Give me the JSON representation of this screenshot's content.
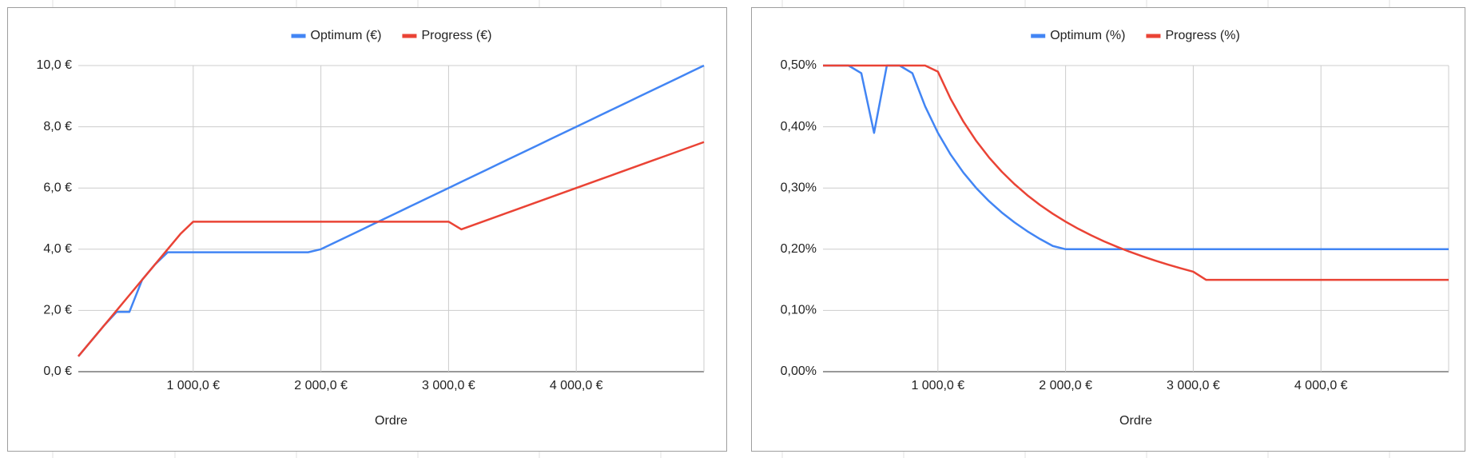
{
  "chart_data": [
    {
      "type": "line",
      "x_label": "Ordre",
      "legend": "top",
      "grid": true,
      "x": [
        100,
        200,
        300,
        400,
        500,
        600,
        700,
        800,
        900,
        1000,
        1100,
        1200,
        1300,
        1400,
        1500,
        1600,
        1700,
        1800,
        1900,
        2000,
        2100,
        2200,
        2300,
        2400,
        2500,
        2600,
        2700,
        2800,
        2900,
        3000,
        3100,
        3200,
        3300,
        3400,
        3500,
        3600,
        3700,
        3800,
        3900,
        4000,
        4100,
        4200,
        4300,
        4400,
        4500,
        4600,
        4700,
        4800,
        4900,
        5000
      ],
      "xlim": [
        100,
        5000
      ],
      "xticks": [
        {
          "value": 1000,
          "label": "1 000,0 €"
        },
        {
          "value": 2000,
          "label": "2 000,0 €"
        },
        {
          "value": 3000,
          "label": "3 000,0 €"
        },
        {
          "value": 4000,
          "label": "4 000,0 €"
        }
      ],
      "ylim": [
        0,
        10
      ],
      "yticks": [
        {
          "value": 0,
          "label": "0,0 €"
        },
        {
          "value": 2,
          "label": "2,0 €"
        },
        {
          "value": 4,
          "label": "4,0 €"
        },
        {
          "value": 6,
          "label": "6,0 €"
        },
        {
          "value": 8,
          "label": "8,0 €"
        },
        {
          "value": 10,
          "label": "10,0 €"
        }
      ],
      "series": [
        {
          "name": "Optimum (€)",
          "color": "#4285f4",
          "values": [
            0.5,
            1.0,
            1.5,
            1.95,
            1.95,
            3.0,
            3.5,
            3.9,
            3.9,
            3.9,
            3.9,
            3.9,
            3.9,
            3.9,
            3.9,
            3.9,
            3.9,
            3.9,
            3.9,
            4.0,
            4.2,
            4.4,
            4.6,
            4.8,
            5.0,
            5.2,
            5.4,
            5.6,
            5.8,
            6.0,
            6.2,
            6.4,
            6.6,
            6.8,
            7.0,
            7.2,
            7.4,
            7.6,
            7.8,
            8.0,
            8.2,
            8.4,
            8.6,
            8.8,
            9.0,
            9.2,
            9.4,
            9.6,
            9.8,
            10.0
          ]
        },
        {
          "name": "Progress (€)",
          "color": "#ea4335",
          "values": [
            0.5,
            1.0,
            1.5,
            2.0,
            2.5,
            3.0,
            3.5,
            4.0,
            4.5,
            4.9,
            4.9,
            4.9,
            4.9,
            4.9,
            4.9,
            4.9,
            4.9,
            4.9,
            4.9,
            4.9,
            4.9,
            4.9,
            4.9,
            4.9,
            4.9,
            4.9,
            4.9,
            4.9,
            4.9,
            4.9,
            4.65,
            4.8,
            4.95,
            5.1,
            5.25,
            5.4,
            5.55,
            5.7,
            5.85,
            6.0,
            6.15,
            6.3,
            6.45,
            6.6,
            6.75,
            6.9,
            7.05,
            7.2,
            7.35,
            7.5
          ]
        }
      ]
    },
    {
      "type": "line",
      "x_label": "Ordre",
      "legend": "top",
      "grid": true,
      "x": [
        100,
        200,
        300,
        400,
        500,
        600,
        700,
        800,
        900,
        1000,
        1100,
        1200,
        1300,
        1400,
        1500,
        1600,
        1700,
        1800,
        1900,
        2000,
        2100,
        2200,
        2300,
        2400,
        2500,
        2600,
        2700,
        2800,
        2900,
        3000,
        3100,
        3200,
        3300,
        3400,
        3500,
        3600,
        3700,
        3800,
        3900,
        4000,
        4100,
        4200,
        4300,
        4400,
        4500,
        4600,
        4700,
        4800,
        4900,
        5000
      ],
      "xlim": [
        100,
        5000
      ],
      "xticks": [
        {
          "value": 1000,
          "label": "1 000,0 €"
        },
        {
          "value": 2000,
          "label": "2 000,0 €"
        },
        {
          "value": 3000,
          "label": "3 000,0 €"
        },
        {
          "value": 4000,
          "label": "4 000,0 €"
        }
      ],
      "ylim": [
        0,
        0.5
      ],
      "yticks": [
        {
          "value": 0,
          "label": "0,00%"
        },
        {
          "value": 0.1,
          "label": "0,10%"
        },
        {
          "value": 0.2,
          "label": "0,20%"
        },
        {
          "value": 0.3,
          "label": "0,30%"
        },
        {
          "value": 0.4,
          "label": "0,40%"
        },
        {
          "value": 0.5,
          "label": "0,50%"
        }
      ],
      "series": [
        {
          "name": "Optimum (%)",
          "color": "#4285f4",
          "values": [
            0.5,
            0.5,
            0.5,
            0.4875,
            0.39,
            0.5,
            0.5,
            0.4875,
            0.4333,
            0.39,
            0.3545,
            0.325,
            0.3,
            0.2786,
            0.26,
            0.2438,
            0.2294,
            0.2167,
            0.2053,
            0.2,
            0.2,
            0.2,
            0.2,
            0.2,
            0.2,
            0.2,
            0.2,
            0.2,
            0.2,
            0.2,
            0.2,
            0.2,
            0.2,
            0.2,
            0.2,
            0.2,
            0.2,
            0.2,
            0.2,
            0.2,
            0.2,
            0.2,
            0.2,
            0.2,
            0.2,
            0.2,
            0.2,
            0.2,
            0.2,
            0.2
          ]
        },
        {
          "name": "Progress (%)",
          "color": "#ea4335",
          "values": [
            0.5,
            0.5,
            0.5,
            0.5,
            0.5,
            0.5,
            0.5,
            0.5,
            0.5,
            0.49,
            0.4455,
            0.4083,
            0.3769,
            0.35,
            0.3267,
            0.3063,
            0.2882,
            0.2722,
            0.2579,
            0.245,
            0.2333,
            0.2227,
            0.213,
            0.2042,
            0.196,
            0.1885,
            0.1815,
            0.175,
            0.169,
            0.1633,
            0.15,
            0.15,
            0.15,
            0.15,
            0.15,
            0.15,
            0.15,
            0.15,
            0.15,
            0.15,
            0.15,
            0.15,
            0.15,
            0.15,
            0.15,
            0.15,
            0.15,
            0.15,
            0.15,
            0.15
          ]
        }
      ]
    }
  ]
}
